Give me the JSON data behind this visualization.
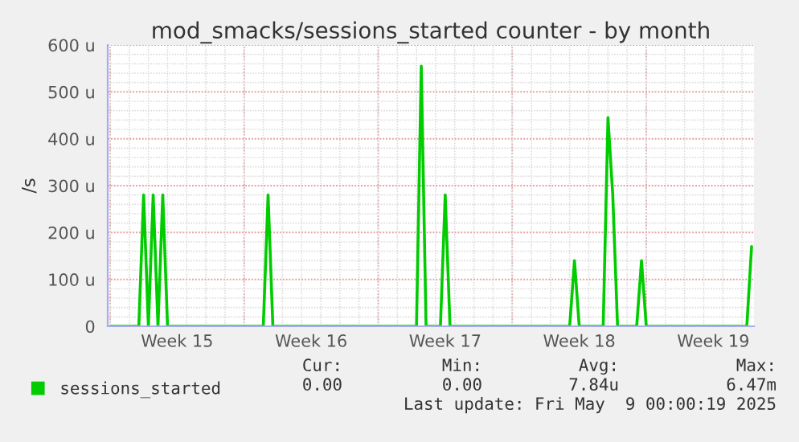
{
  "chart_data": {
    "type": "line",
    "title": "mod_smacks/sessions_started counter - by month",
    "ylabel": "/s",
    "categories": [
      null,
      null,
      null,
      null,
      null,
      null,
      null,
      null,
      null,
      null,
      null,
      null,
      null,
      null,
      "Week 15",
      null,
      null,
      null,
      null,
      null,
      null,
      null,
      null,
      null,
      null,
      null,
      null,
      null,
      null,
      null,
      null,
      null,
      null,
      null,
      null,
      null,
      null,
      null,
      null,
      null,
      null,
      null,
      "Week 16",
      null,
      null,
      null,
      null,
      null,
      null,
      null,
      null,
      null,
      null,
      null,
      null,
      null,
      null,
      null,
      null,
      null,
      null,
      null,
      null,
      null,
      null,
      null,
      null,
      null,
      null,
      null,
      "Week 17",
      null,
      null,
      null,
      null,
      null,
      null,
      null,
      null,
      null,
      null,
      null,
      null,
      null,
      null,
      null,
      null,
      null,
      null,
      null,
      null,
      null,
      null,
      null,
      null,
      null,
      null,
      null,
      "Week 18",
      null,
      null,
      null,
      null,
      null,
      null,
      null,
      null,
      null,
      null,
      null,
      null,
      null,
      null,
      null,
      null,
      null,
      null,
      null,
      null,
      null,
      null,
      null,
      null,
      null,
      null,
      null,
      "Week 19",
      null,
      null,
      null,
      null,
      null,
      null,
      null,
      null
    ],
    "series": [
      {
        "name": "sessions_started",
        "color": "#00cc00",
        "values": [
          0,
          0,
          0,
          0,
          0,
          0,
          0,
          280,
          0,
          280,
          0,
          280,
          0,
          0,
          0,
          0,
          0,
          0,
          0,
          0,
          0,
          0,
          0,
          0,
          0,
          0,
          0,
          0,
          0,
          0,
          0,
          0,
          0,
          280,
          0,
          0,
          0,
          0,
          0,
          0,
          0,
          0,
          0,
          0,
          0,
          0,
          0,
          0,
          0,
          0,
          0,
          0,
          0,
          0,
          0,
          0,
          0,
          0,
          0,
          0,
          0,
          0,
          0,
          0,
          0,
          555,
          0,
          0,
          0,
          0,
          280,
          0,
          0,
          0,
          0,
          0,
          0,
          0,
          0,
          0,
          0,
          0,
          0,
          0,
          0,
          0,
          0,
          0,
          0,
          0,
          0,
          0,
          0,
          0,
          0,
          0,
          0,
          140,
          0,
          0,
          0,
          0,
          0,
          0,
          445,
          280,
          0,
          0,
          0,
          0,
          0,
          140,
          0,
          0,
          0,
          0,
          0,
          0,
          0,
          0,
          0,
          0,
          0,
          0,
          0,
          0,
          0,
          0,
          0,
          0,
          0,
          0,
          0,
          0,
          170
        ]
      }
    ],
    "ylim": [
      0,
      600
    ],
    "yticks": [
      {
        "value": 0,
        "label": "0"
      },
      {
        "value": 100,
        "label": "100 u"
      },
      {
        "value": 200,
        "label": "200 u"
      },
      {
        "value": 300,
        "label": "300 u"
      },
      {
        "value": 400,
        "label": "400 u"
      },
      {
        "value": 500,
        "label": "500 u"
      },
      {
        "value": 600,
        "label": "600 u"
      }
    ],
    "grid": true,
    "legend": "bottom left",
    "annotations": [
      "Cur:",
      "Min:",
      "Avg:",
      "Max:",
      "0.00",
      "0.00",
      "7.84u",
      "6.47m",
      "Last update: Fri May  9 00:00:19 2025"
    ]
  }
}
